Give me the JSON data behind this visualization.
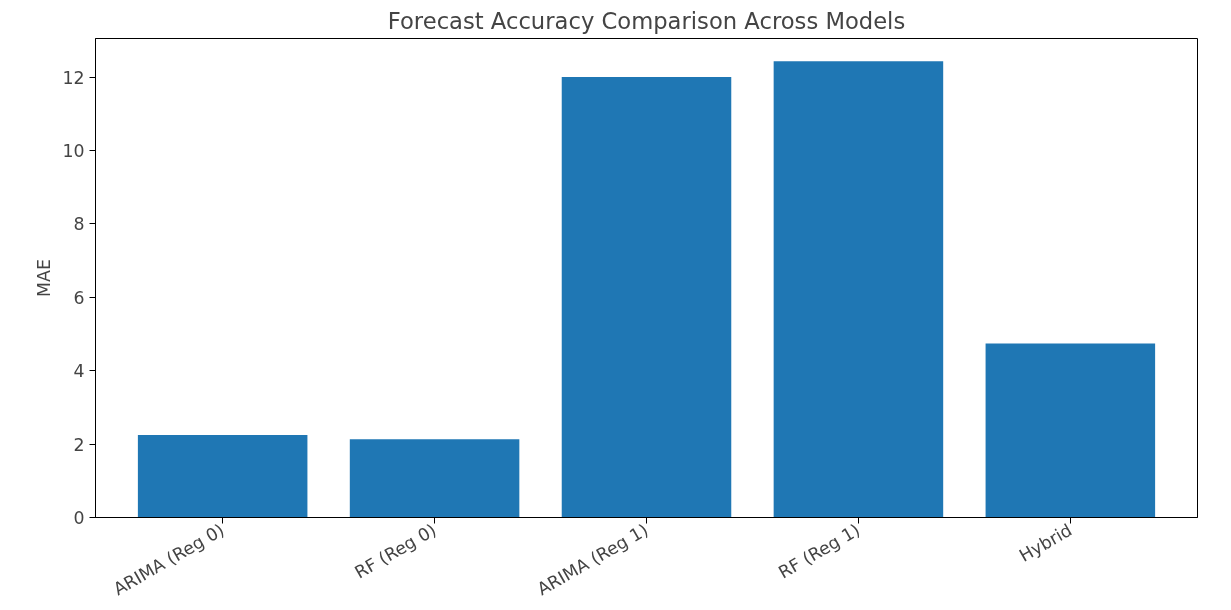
{
  "chart_data": {
    "type": "bar",
    "title": "Forecast Accuracy Comparison Across Models",
    "ylabel": "MAE",
    "categories": [
      "ARIMA (Reg 0)",
      "RF (Reg 0)",
      "ARIMA (Reg 1)",
      "RF (Reg 1)",
      "Hybrid"
    ],
    "values": [
      2.25,
      2.13,
      12.0,
      12.43,
      4.74
    ],
    "color": "#1f77b4",
    "ylim": [
      0,
      13.05
    ],
    "yticks": [
      0,
      2,
      4,
      6,
      8,
      10,
      12
    ],
    "grid": false
  }
}
